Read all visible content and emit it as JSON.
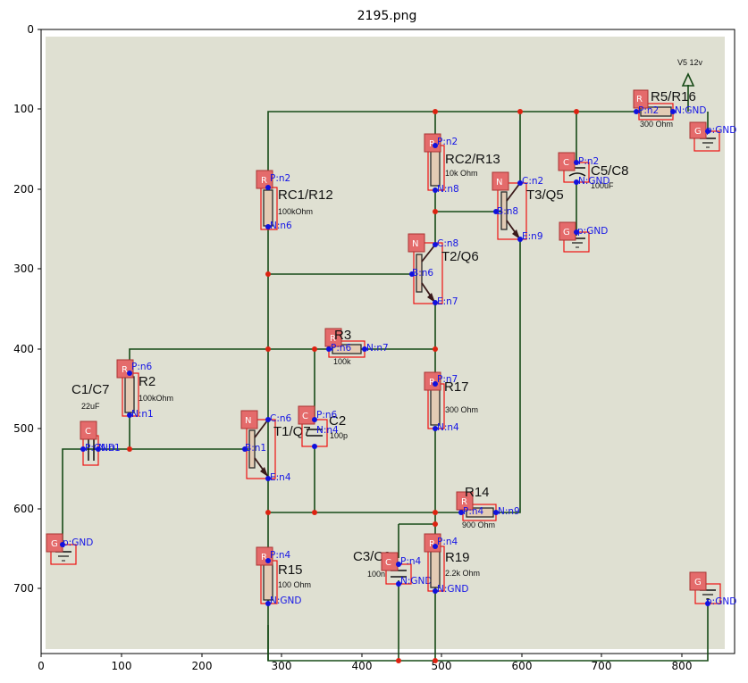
{
  "title": "2195.png",
  "axes": {
    "x_ticks": [
      "0",
      "100",
      "200",
      "300",
      "400",
      "500",
      "600",
      "700",
      "800"
    ],
    "y_ticks": [
      "0",
      "100",
      "200",
      "300",
      "400",
      "500",
      "600",
      "700"
    ]
  },
  "colors": {
    "background": "#dfe0d2",
    "wire": "#174a17",
    "badge": "#e46b6b",
    "pin_label": "#1414e6",
    "bbox": "#ee1111"
  },
  "components": [
    {
      "id": "R5",
      "badge": "R",
      "label": "R5/R16",
      "value": "300  Ohm",
      "pins": [
        "P:n2",
        "N:GND"
      ]
    },
    {
      "id": "V5",
      "badge": "",
      "label": "V5  12v",
      "value": "",
      "pins": []
    },
    {
      "id": "G1",
      "badge": "G",
      "label": "",
      "value": "",
      "pins": [
        "p:GND"
      ]
    },
    {
      "id": "RC2",
      "badge": "R",
      "label": "RC2/R13",
      "value": "10k Ohm",
      "pins": [
        "P:n2",
        "N:n8"
      ]
    },
    {
      "id": "C5",
      "badge": "C",
      "label": "C5/C8",
      "value": "100uF",
      "pins": [
        "P:n2",
        "N:GND"
      ]
    },
    {
      "id": "T3",
      "badge": "N",
      "label": "T3/Q5",
      "value": "",
      "pins": [
        "C:n2",
        "B:n8",
        "E:n9"
      ]
    },
    {
      "id": "RC1",
      "badge": "R",
      "label": "RC1/R12",
      "value": "100kOhm",
      "pins": [
        "P:n2",
        "N:n6"
      ]
    },
    {
      "id": "G2",
      "badge": "G",
      "label": "",
      "value": "",
      "pins": [
        "p:GND"
      ]
    },
    {
      "id": "T2",
      "badge": "N",
      "label": "T2/Q6",
      "value": "",
      "pins": [
        "C:n8",
        "B:n6",
        "E:n7"
      ]
    },
    {
      "id": "R3",
      "badge": "R",
      "label": "R3",
      "value": "100k",
      "pins": [
        "P:n6",
        "N:n7"
      ]
    },
    {
      "id": "R2",
      "badge": "R",
      "label": "R2",
      "value": "100kOhm",
      "pins": [
        "P:n6",
        "N:n1"
      ]
    },
    {
      "id": "C1",
      "badge": "C",
      "label": "C1/C7",
      "value": "22uF",
      "pins": [
        "P:GND",
        "N:n1"
      ]
    },
    {
      "id": "R17",
      "badge": "R",
      "label": "R17",
      "value": "300 Ohm",
      "pins": [
        "P:n7",
        "N:n4"
      ]
    },
    {
      "id": "T1",
      "badge": "N",
      "label": "T1/Q7",
      "value": "",
      "pins": [
        "C:n6",
        "B:n1",
        "E:n4"
      ]
    },
    {
      "id": "C2",
      "badge": "C",
      "label": "C2",
      "value": "100p",
      "pins": [
        "P:n6",
        "N:n4"
      ]
    },
    {
      "id": "R14",
      "badge": "R",
      "label": "R14",
      "value": "900  Ohm",
      "pins": [
        "P:n4",
        "N:n9"
      ]
    },
    {
      "id": "G3",
      "badge": "G",
      "label": "",
      "value": "",
      "pins": [
        "p:GND"
      ]
    },
    {
      "id": "R15",
      "badge": "R",
      "label": "R15",
      "value": "100  Ohm",
      "pins": [
        "P:n4",
        "N:GND"
      ]
    },
    {
      "id": "C3",
      "badge": "C",
      "label": "C3/C9",
      "value": "100n",
      "pins": [
        "P:n4",
        "N:GND"
      ]
    },
    {
      "id": "R19",
      "badge": "R",
      "label": "R19",
      "value": "2.2k Ohm",
      "pins": [
        "P:n4",
        "N:GND"
      ]
    },
    {
      "id": "G4",
      "badge": "G",
      "label": "",
      "value": "",
      "pins": [
        "p:GND"
      ]
    }
  ]
}
